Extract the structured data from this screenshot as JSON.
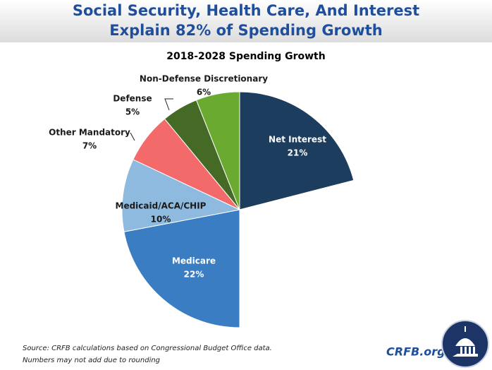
{
  "header": {
    "title_lines": [
      "Social Security, Health Care, And Interest",
      "Explain 82% of Spending Growth"
    ]
  },
  "chart_data": {
    "type": "pie",
    "title": "2018-2028 Spending Growth",
    "categories": [
      "Net Interest",
      null,
      "Medicare",
      "Medicaid/ACA/CHIP",
      "Other Mandatory",
      "Defense",
      "Non-Defense Discretionary"
    ],
    "values": [
      21,
      29,
      22,
      10,
      7,
      5,
      6
    ],
    "value_labels": [
      "21%",
      null,
      "22%",
      "10%",
      "7%",
      "5%",
      "6%"
    ],
    "colors": [
      "#1d3d5e",
      "#ffffff",
      "#3b7dc3",
      "#8fbadf",
      "#f26a6a",
      "#456a26",
      "#6aaa31"
    ]
  },
  "footer": {
    "source": "Source: CRFB calculations based on Congressional Budget Office data.",
    "note": "Numbers may not add due to rounding",
    "brand": "CRFB.org"
  }
}
